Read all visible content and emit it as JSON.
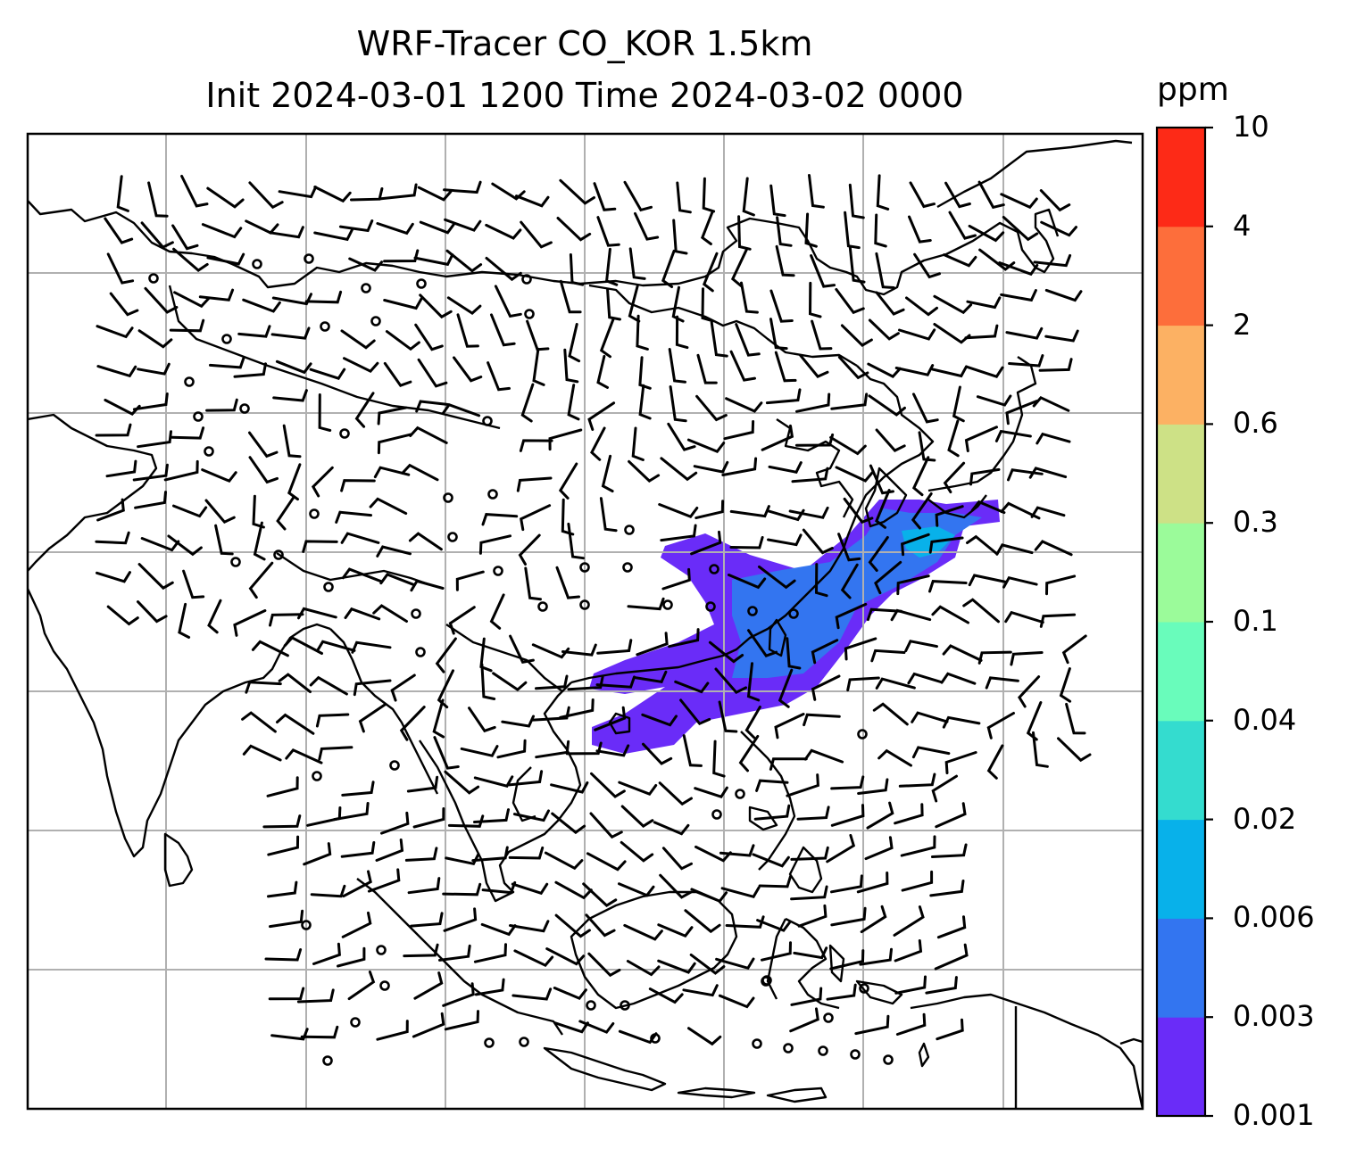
{
  "title": {
    "line1": "WRF-Tracer CO_KOR 1.5km",
    "line2": "Init 2024-03-01 1200 Time 2024-03-02 0000"
  },
  "colorbar": {
    "unit": "ppm",
    "levels": [
      "0.001",
      "0.003",
      "0.006",
      "0.02",
      "0.04",
      "0.1",
      "0.3",
      "0.6",
      "2",
      "4",
      "10"
    ],
    "colors": [
      "#6a2cf8",
      "#3375f0",
      "#08b1ea",
      "#34dccf",
      "#69fcbb",
      "#9bfb9a",
      "#cde186",
      "#fcb163",
      "#fd6e3b",
      "#fd2a17"
    ]
  },
  "map": {
    "gridlines": true,
    "frame_color": "#000000",
    "grid_color": "#b0b0b0",
    "coast_color": "#000000",
    "barb_color": "#000000"
  }
}
